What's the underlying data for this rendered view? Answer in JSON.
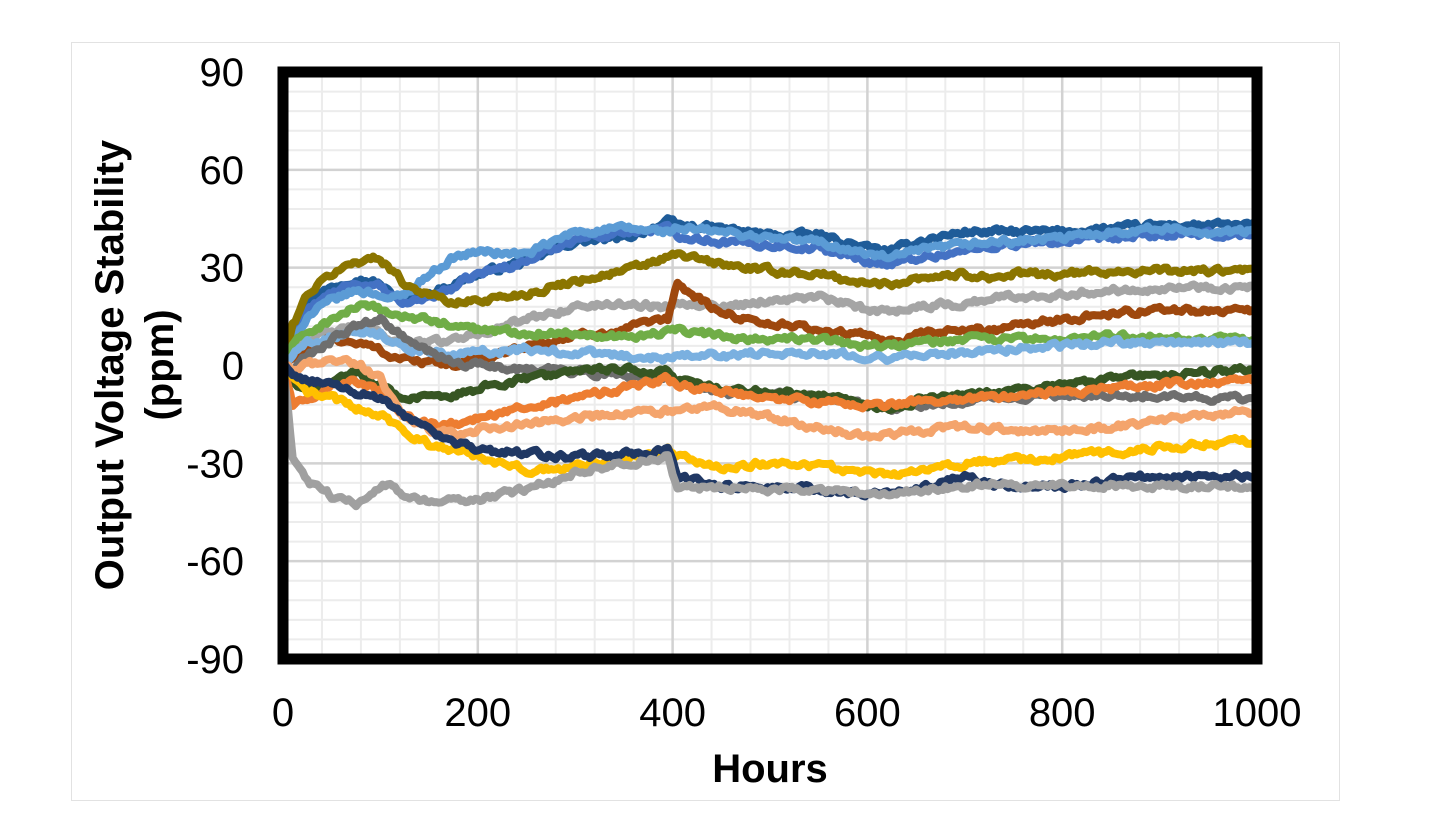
{
  "chart_data": {
    "type": "line",
    "title": "",
    "xlabel": "Hours",
    "ylabel_line1": "Output Voltage Stability",
    "ylabel_line2": "(ppm)",
    "xlim": [
      0,
      1000
    ],
    "ylim": [
      -90,
      90
    ],
    "x_ticks": [
      0,
      200,
      400,
      600,
      800,
      1000
    ],
    "x_tick_labels": [
      "0",
      "200",
      "400",
      "600",
      "800",
      "1000"
    ],
    "y_ticks": [
      90,
      60,
      30,
      0,
      -30,
      -60,
      -90
    ],
    "y_tick_labels": [
      "90",
      "60",
      "30",
      "0",
      "-30",
      "-60",
      "-90"
    ],
    "grid": true,
    "legend": "none",
    "x": [
      0,
      10,
      25,
      50,
      75,
      100,
      110,
      125,
      150,
      175,
      200,
      250,
      300,
      350,
      395,
      405,
      450,
      500,
      550,
      600,
      625,
      650,
      700,
      735,
      750,
      800,
      850,
      900,
      950,
      1000
    ],
    "series": [
      {
        "color": "#1f5c99",
        "values": [
          0,
          12,
          20,
          24,
          27,
          25,
          22,
          20,
          22,
          25,
          28,
          32,
          38,
          39,
          44,
          43,
          42,
          40,
          40,
          36,
          35,
          38,
          41,
          41,
          41,
          41,
          42,
          43,
          43,
          43
        ]
      },
      {
        "color": "#4472c4",
        "values": [
          0,
          10,
          17,
          22,
          25,
          24,
          21,
          19,
          21,
          24,
          28,
          32,
          39,
          41,
          42,
          40,
          38,
          37,
          36,
          32,
          31,
          33,
          35,
          37,
          37,
          38,
          39,
          40,
          40,
          40
        ]
      },
      {
        "color": "#5b9bd5",
        "values": [
          0,
          8,
          15,
          20,
          23,
          22,
          20,
          22,
          28,
          33,
          35,
          34,
          41,
          42,
          41,
          42,
          41,
          39,
          38,
          34,
          33,
          35,
          37,
          38,
          38,
          39,
          41,
          42,
          41,
          41
        ]
      },
      {
        "color": "#8b7500",
        "values": [
          0,
          12,
          22,
          28,
          32,
          33,
          30,
          25,
          22,
          19,
          20,
          22,
          26,
          29,
          33,
          34,
          31,
          29,
          28,
          25,
          25,
          27,
          28,
          27,
          28,
          28,
          29,
          29,
          29,
          29
        ]
      },
      {
        "color": "#a5a5a5",
        "values": [
          0,
          6,
          8,
          10,
          12,
          10,
          8,
          7,
          7,
          8,
          10,
          14,
          18,
          19,
          18,
          20,
          18,
          20,
          21,
          17,
          17,
          18,
          19,
          21,
          21,
          22,
          23,
          24,
          24,
          24
        ]
      },
      {
        "color": "#9e480e",
        "values": [
          0,
          2,
          5,
          8,
          7,
          5,
          3,
          2,
          1,
          0,
          2,
          6,
          9,
          11,
          14,
          25,
          16,
          13,
          11,
          9,
          7,
          9,
          11,
          11,
          13,
          14,
          16,
          17,
          17,
          17
        ]
      },
      {
        "color": "#70ad47",
        "values": [
          0,
          6,
          10,
          14,
          18,
          17,
          16,
          15,
          14,
          12,
          11,
          10,
          10,
          9,
          10,
          11,
          9,
          8,
          8,
          6,
          6,
          7,
          8,
          8,
          8,
          8,
          9,
          9,
          8,
          8
        ]
      },
      {
        "color": "#7ab0e0",
        "values": [
          0,
          4,
          7,
          9,
          11,
          10,
          8,
          6,
          4,
          3,
          4,
          5,
          4,
          3,
          2,
          4,
          3,
          4,
          4,
          3,
          2,
          3,
          4,
          5,
          5,
          6,
          7,
          7,
          7,
          7
        ]
      },
      {
        "color": "#6e6e6e",
        "values": [
          0,
          -2,
          3,
          8,
          12,
          14,
          12,
          8,
          4,
          1,
          0,
          -1,
          -2,
          -3,
          -4,
          -6,
          -8,
          -9,
          -10,
          -12,
          -13,
          -12,
          -11,
          -10,
          -10,
          -9,
          -9,
          -9,
          -10,
          -10
        ]
      },
      {
        "color": "#375623",
        "values": [
          0,
          -6,
          -8,
          -5,
          -2,
          -6,
          -8,
          -10,
          -10,
          -9,
          -7,
          -4,
          -2,
          -1,
          -2,
          -5,
          -7,
          -8,
          -9,
          -12,
          -13,
          -11,
          -9,
          -8,
          -8,
          -6,
          -4,
          -3,
          -2,
          -1
        ]
      },
      {
        "color": "#ed7d31",
        "values": [
          0,
          -12,
          -10,
          -6,
          -5,
          -8,
          -12,
          -16,
          -18,
          -18,
          -16,
          -13,
          -10,
          -7,
          -4,
          -6,
          -8,
          -10,
          -11,
          -12,
          -12,
          -11,
          -10,
          -10,
          -9,
          -8,
          -7,
          -6,
          -5,
          -5
        ]
      },
      {
        "color": "#f4a46c",
        "values": [
          0,
          -2,
          0,
          2,
          1,
          -4,
          -10,
          -16,
          -20,
          -21,
          -20,
          -18,
          -16,
          -15,
          -14,
          -14,
          -13,
          -16,
          -19,
          -22,
          -21,
          -20,
          -19,
          -19,
          -20,
          -20,
          -19,
          -17,
          -15,
          -14
        ]
      },
      {
        "color": "#ffc000",
        "values": [
          0,
          -4,
          -8,
          -10,
          -13,
          -15,
          -17,
          -20,
          -24,
          -26,
          -28,
          -32,
          -31,
          -29,
          -26,
          -28,
          -31,
          -30,
          -31,
          -33,
          -34,
          -32,
          -30,
          -29,
          -29,
          -28,
          -27,
          -25,
          -24,
          -23
        ]
      },
      {
        "color": "#203864",
        "values": [
          0,
          -2,
          -5,
          -6,
          -8,
          -10,
          -12,
          -16,
          -20,
          -23,
          -26,
          -27,
          -28,
          -27,
          -26,
          -34,
          -37,
          -37,
          -38,
          -39,
          -40,
          -38,
          -34,
          -37,
          -37,
          -37,
          -35,
          -34,
          -34,
          -34
        ]
      },
      {
        "color": "#a0a0a0",
        "values": [
          0,
          -28,
          -36,
          -40,
          -42,
          -38,
          -36,
          -40,
          -42,
          -41,
          -41,
          -38,
          -33,
          -30,
          -28,
          -38,
          -37,
          -38,
          -38,
          -39,
          -39,
          -38,
          -37,
          -36,
          -37,
          -37,
          -37,
          -37,
          -37,
          -37
        ]
      }
    ]
  }
}
